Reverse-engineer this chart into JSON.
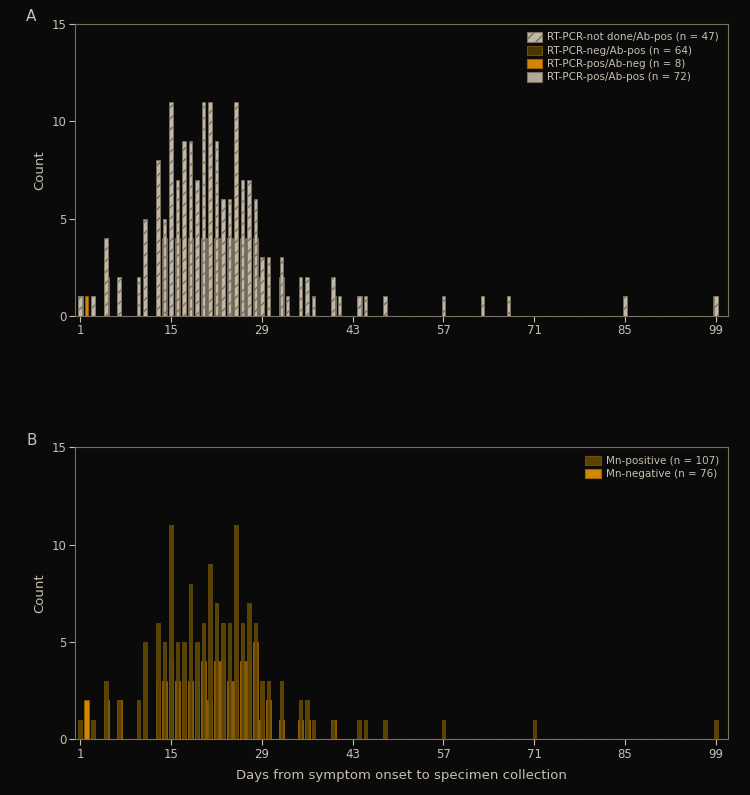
{
  "background_color": "#0a0a0a",
  "axes_bg_color": "#0a0a0a",
  "text_color": "#c8bfb0",
  "spine_color": "#7a7060",
  "tick_color": "#c8bfb0",
  "xlabel": "Days from symptom onset to specimen collection",
  "ylabel": "Count",
  "xlim": [
    0,
    101
  ],
  "ylim_A": [
    0,
    15
  ],
  "ylim_B": [
    0,
    15
  ],
  "xticks": [
    1,
    15,
    29,
    43,
    57,
    71,
    85,
    99
  ],
  "yticks": [
    0,
    5,
    10,
    15
  ],
  "panel_A_label": "A",
  "panel_B_label": "B",
  "legend_A_labels": [
    "RT-PCR-not done/Ab-pos (n = 47)",
    "RT-PCR-neg/Ab-pos (n = 64)",
    "RT-PCR-pos/Ab-neg (n = 8)",
    "RT-PCR-pos/Ab-pos (n = 72)"
  ],
  "legend_B_labels": [
    "Mn-positive (n = 107)",
    "Mn-negative (n = 76)"
  ],
  "col_hatch": "#b5aa9a",
  "col_dark": "#4a3800",
  "col_orange": "#d08800",
  "col_lgray": "#b5aa9a",
  "col_mnpos": "#5a4200",
  "col_mnneg": "#d08800",
  "panel_A": {
    "days": [
      1,
      2,
      3,
      4,
      5,
      6,
      7,
      8,
      9,
      10,
      11,
      12,
      13,
      14,
      15,
      16,
      17,
      18,
      19,
      20,
      21,
      22,
      23,
      24,
      25,
      26,
      27,
      28,
      29,
      30,
      31,
      32,
      33,
      34,
      35,
      36,
      37,
      38,
      39,
      40,
      41,
      42,
      43,
      44,
      45,
      46,
      47,
      48,
      49,
      50,
      51,
      52,
      53,
      54,
      55,
      56,
      57,
      58,
      59,
      60,
      61,
      62,
      63,
      64,
      65,
      66,
      67,
      68,
      69,
      70,
      71,
      72,
      73,
      74,
      75,
      76,
      77,
      78,
      79,
      80,
      81,
      82,
      83,
      84,
      85,
      86,
      87,
      88,
      89,
      90,
      91,
      92,
      93,
      94,
      95,
      96,
      97,
      98,
      99
    ],
    "hatch": [
      1,
      0,
      1,
      0,
      4,
      0,
      2,
      0,
      0,
      2,
      5,
      0,
      8,
      5,
      11,
      7,
      9,
      9,
      7,
      11,
      11,
      9,
      6,
      6,
      11,
      7,
      7,
      6,
      3,
      3,
      0,
      3,
      1,
      0,
      2,
      2,
      1,
      0,
      0,
      2,
      1,
      0,
      0,
      1,
      1,
      0,
      0,
      1,
      0,
      0,
      0,
      0,
      0,
      0,
      0,
      0,
      1,
      0,
      0,
      0,
      0,
      0,
      1,
      0,
      0,
      0,
      1,
      0,
      0,
      0,
      0,
      0,
      0,
      0,
      0,
      0,
      0,
      0,
      0,
      0,
      0,
      0,
      0,
      0,
      1,
      0,
      0,
      0,
      0,
      0,
      0,
      0,
      0,
      0,
      0,
      0,
      0,
      0,
      1
    ],
    "dark": [
      0,
      0,
      1,
      0,
      2,
      0,
      2,
      0,
      0,
      0,
      0,
      0,
      6,
      5,
      10,
      6,
      6,
      8,
      5,
      6,
      7,
      7,
      6,
      5,
      9,
      6,
      5,
      4,
      1,
      2,
      0,
      1,
      0,
      0,
      1,
      1,
      0,
      0,
      0,
      1,
      0,
      0,
      0,
      0,
      0,
      0,
      0,
      0,
      0,
      0,
      0,
      0,
      0,
      0,
      0,
      0,
      0,
      0,
      0,
      0,
      0,
      0,
      1,
      0,
      0,
      0,
      1,
      0,
      0,
      0,
      0,
      0,
      0,
      0,
      0,
      0,
      0,
      0,
      0,
      0,
      0,
      0,
      0,
      0,
      0,
      0,
      0,
      0,
      0,
      0,
      0,
      0,
      0,
      0,
      0,
      0,
      0,
      0,
      0
    ],
    "orange": [
      0,
      1,
      0,
      0,
      3,
      0,
      1,
      0,
      0,
      0,
      0,
      0,
      0,
      0,
      1,
      0,
      4,
      0,
      0,
      0,
      0,
      0,
      0,
      0,
      0,
      0,
      0,
      0,
      0,
      0,
      0,
      0,
      0,
      0,
      0,
      0,
      0,
      0,
      0,
      0,
      0,
      0,
      0,
      0,
      0,
      0,
      0,
      0,
      0,
      0,
      0,
      0,
      0,
      0,
      0,
      0,
      0,
      0,
      0,
      0,
      0,
      0,
      0,
      0,
      0,
      0,
      0,
      0,
      0,
      0,
      0,
      0,
      0,
      0,
      0,
      0,
      0,
      0,
      0,
      0,
      0,
      0,
      0,
      0,
      0,
      0,
      0,
      0,
      0,
      0,
      0,
      0,
      0,
      0,
      0,
      0,
      0,
      0,
      0
    ],
    "lgray": [
      1,
      0,
      0,
      0,
      2,
      0,
      0,
      0,
      0,
      0,
      0,
      0,
      4,
      4,
      4,
      4,
      4,
      4,
      4,
      4,
      4,
      4,
      4,
      4,
      4,
      4,
      4,
      4,
      2,
      0,
      0,
      2,
      0,
      0,
      0,
      0,
      0,
      0,
      0,
      1,
      0,
      0,
      0,
      1,
      0,
      0,
      0,
      0,
      0,
      0,
      0,
      0,
      0,
      0,
      0,
      0,
      0,
      0,
      0,
      0,
      0,
      0,
      0,
      0,
      0,
      0,
      0,
      0,
      0,
      0,
      0,
      0,
      0,
      0,
      0,
      0,
      0,
      0,
      0,
      0,
      0,
      0,
      0,
      0,
      0,
      0,
      0,
      0,
      0,
      0,
      0,
      0,
      0,
      0,
      0,
      0,
      0,
      0,
      1
    ]
  },
  "panel_B": {
    "days": [
      1,
      2,
      3,
      4,
      5,
      6,
      7,
      8,
      9,
      10,
      11,
      12,
      13,
      14,
      15,
      16,
      17,
      18,
      19,
      20,
      21,
      22,
      23,
      24,
      25,
      26,
      27,
      28,
      29,
      30,
      31,
      32,
      33,
      34,
      35,
      36,
      37,
      38,
      39,
      40,
      41,
      42,
      43,
      44,
      45,
      46,
      47,
      48,
      49,
      50,
      51,
      52,
      53,
      54,
      55,
      56,
      57,
      58,
      59,
      60,
      61,
      62,
      63,
      64,
      65,
      66,
      67,
      68,
      69,
      70,
      71,
      72,
      73,
      74,
      75,
      76,
      77,
      78,
      79,
      80,
      81,
      82,
      83,
      84,
      85,
      86,
      87,
      88,
      89,
      90,
      91,
      92,
      93,
      94,
      95,
      96,
      97,
      98,
      99
    ],
    "mn_pos": [
      1,
      0,
      1,
      0,
      3,
      0,
      2,
      0,
      0,
      2,
      5,
      0,
      6,
      5,
      11,
      5,
      5,
      8,
      5,
      6,
      9,
      7,
      6,
      6,
      11,
      6,
      7,
      6,
      3,
      3,
      0,
      3,
      0,
      0,
      2,
      2,
      1,
      0,
      0,
      1,
      0,
      0,
      0,
      1,
      1,
      0,
      0,
      1,
      0,
      0,
      0,
      0,
      0,
      0,
      0,
      0,
      1,
      0,
      0,
      0,
      0,
      0,
      0,
      0,
      0,
      0,
      0,
      0,
      0,
      0,
      1,
      0,
      0,
      0,
      0,
      0,
      0,
      0,
      0,
      0,
      0,
      0,
      0,
      0,
      0,
      0,
      0,
      0,
      0,
      0,
      0,
      0,
      0,
      0,
      0,
      0,
      0,
      0,
      1
    ],
    "mn_neg": [
      0,
      2,
      0,
      0,
      2,
      0,
      2,
      0,
      0,
      0,
      0,
      0,
      3,
      3,
      4,
      3,
      3,
      3,
      3,
      4,
      2,
      4,
      4,
      3,
      3,
      4,
      4,
      5,
      1,
      2,
      0,
      1,
      0,
      0,
      1,
      1,
      0,
      0,
      0,
      1,
      0,
      0,
      0,
      0,
      0,
      0,
      0,
      0,
      0,
      0,
      0,
      0,
      0,
      0,
      0,
      0,
      0,
      0,
      0,
      0,
      0,
      0,
      0,
      0,
      0,
      0,
      0,
      0,
      0,
      0,
      0,
      0,
      0,
      0,
      0,
      0,
      0,
      0,
      0,
      0,
      0,
      0,
      0,
      0,
      0,
      0,
      0,
      0,
      0,
      0,
      0,
      0,
      0,
      0,
      0,
      0,
      0,
      0,
      0
    ]
  }
}
